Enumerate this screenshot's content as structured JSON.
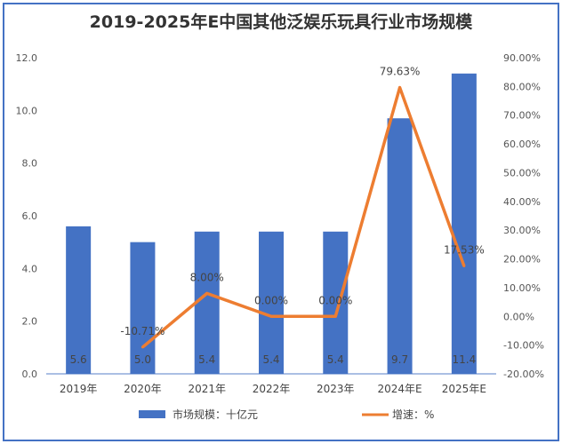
{
  "chart_data": {
    "type": "bar+line",
    "title": "2019-2025年E中国其他泛娱乐玩具行业市场规模",
    "categories": [
      "2019年",
      "2020年",
      "2021年",
      "2022年",
      "2023年",
      "2024年E",
      "2025年E"
    ],
    "series": [
      {
        "name": "市场规模：十亿元",
        "type": "bar",
        "axis": "left",
        "color": "#4472c4",
        "values": [
          5.6,
          5.0,
          5.4,
          5.4,
          5.4,
          9.7,
          11.4
        ],
        "labels": [
          "5.6",
          "5.0",
          "5.4",
          "5.4",
          "5.4",
          "9.7",
          "11.4"
        ]
      },
      {
        "name": "增速：%",
        "type": "line",
        "axis": "right",
        "color": "#ed7d31",
        "values": [
          null,
          -10.71,
          8.0,
          0.0,
          0.0,
          79.63,
          17.53
        ],
        "labels": [
          "",
          "-10.71%",
          "8.00%",
          "0.00%",
          "0.00%",
          "79.63%",
          "17.53%"
        ]
      }
    ],
    "ylim_left": [
      0,
      12
    ],
    "yticks_left": [
      "0.0",
      "2.0",
      "4.0",
      "6.0",
      "8.0",
      "10.0",
      "12.0"
    ],
    "ylim_right": [
      -20,
      90
    ],
    "yticks_right": [
      "-20.00%",
      "-10.00%",
      "0.00%",
      "10.00%",
      "20.00%",
      "30.00%",
      "40.00%",
      "50.00%",
      "60.00%",
      "70.00%",
      "80.00%",
      "90.00%"
    ],
    "grid": false,
    "legend": "bottom"
  }
}
